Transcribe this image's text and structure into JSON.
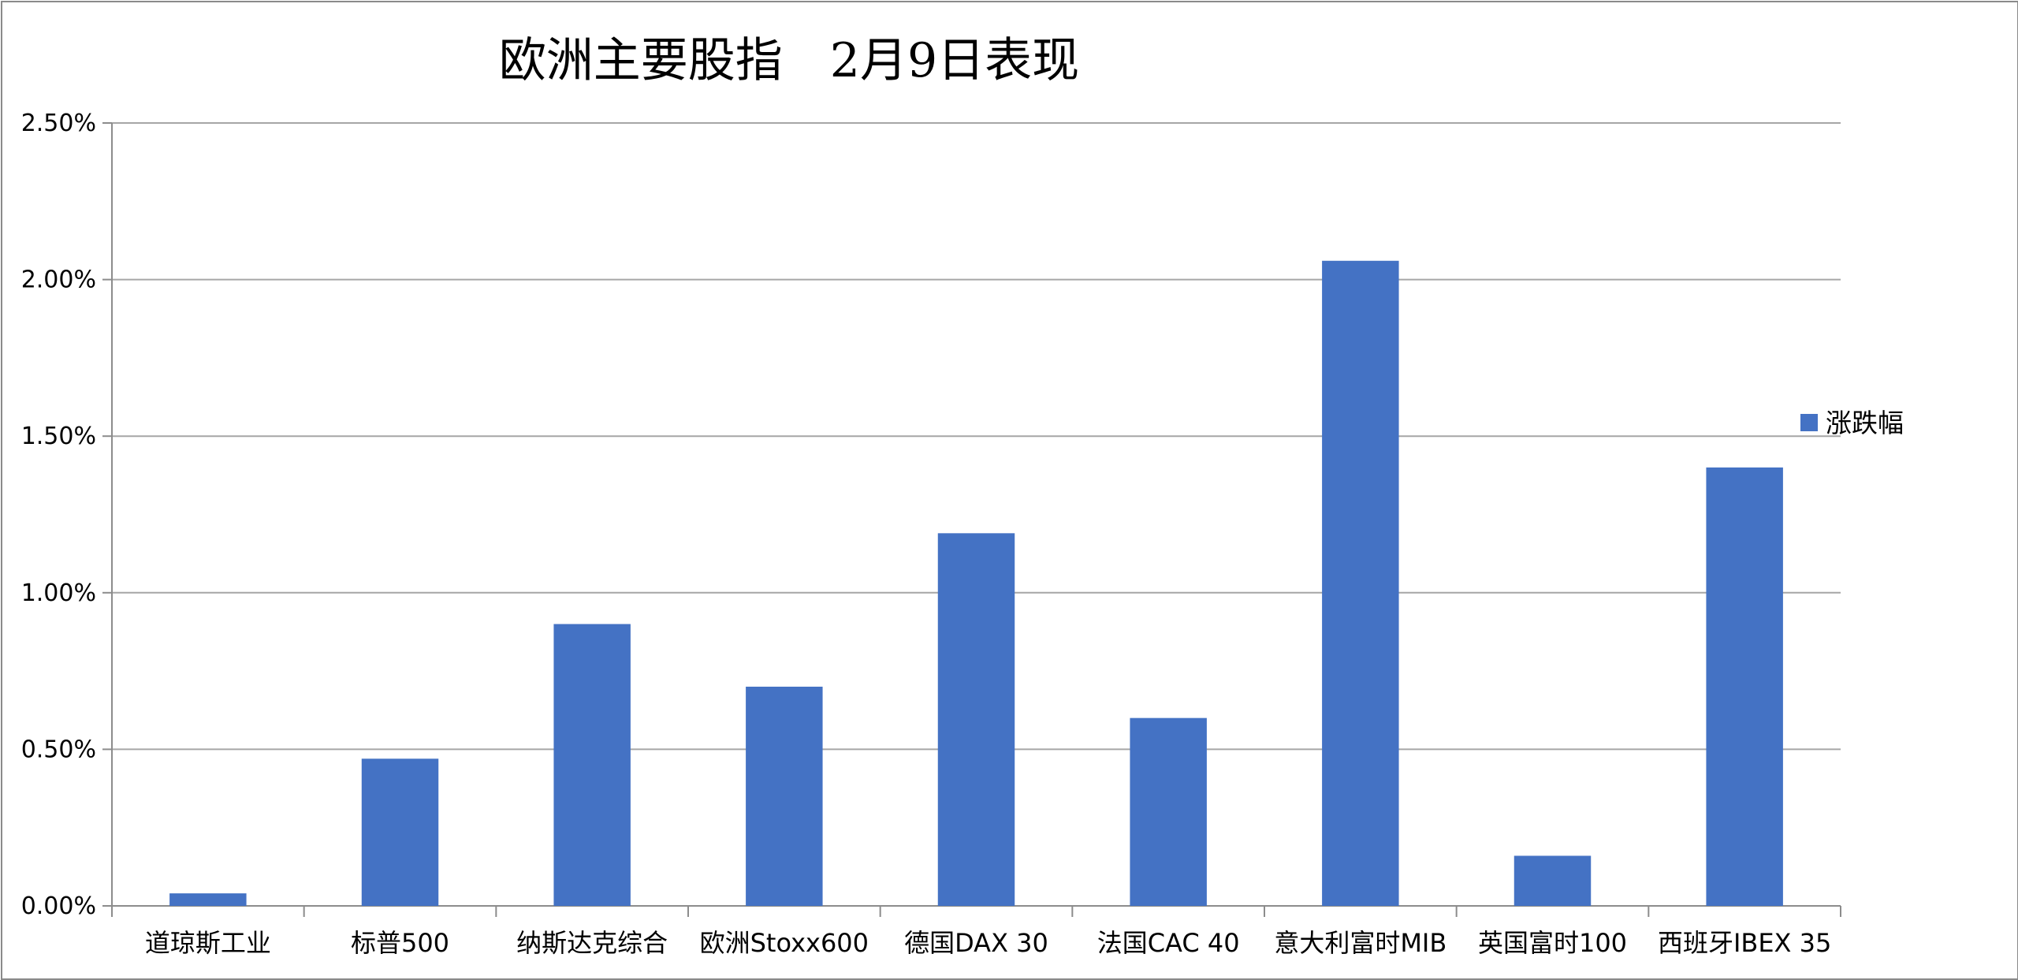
{
  "chart_data": {
    "type": "bar",
    "title": "欧洲主要股指　2月9日表现",
    "xlabel": "",
    "ylabel": "",
    "categories": [
      "道琼斯工业",
      "标普500",
      "纳斯达克综合",
      "欧洲Stoxx600",
      "德国DAX 30",
      "法国CAC 40",
      "意大利富时MIB",
      "英国富时100",
      "西班牙IBEX 35"
    ],
    "series": [
      {
        "name": "涨跌幅",
        "values": [
          0.04,
          0.47,
          0.9,
          0.7,
          1.19,
          0.6,
          2.06,
          0.16,
          1.4
        ],
        "color": "#4472C4"
      }
    ],
    "ylim": [
      0,
      2.5
    ],
    "yticks": [
      0,
      0.5,
      1.0,
      1.5,
      2.0,
      2.5
    ],
    "ytick_labels": [
      "0.00%",
      "0.50%",
      "1.00%",
      "1.50%",
      "2.00%",
      "2.50%"
    ],
    "value_unit": "%",
    "grid": true,
    "legend_position": "right"
  }
}
